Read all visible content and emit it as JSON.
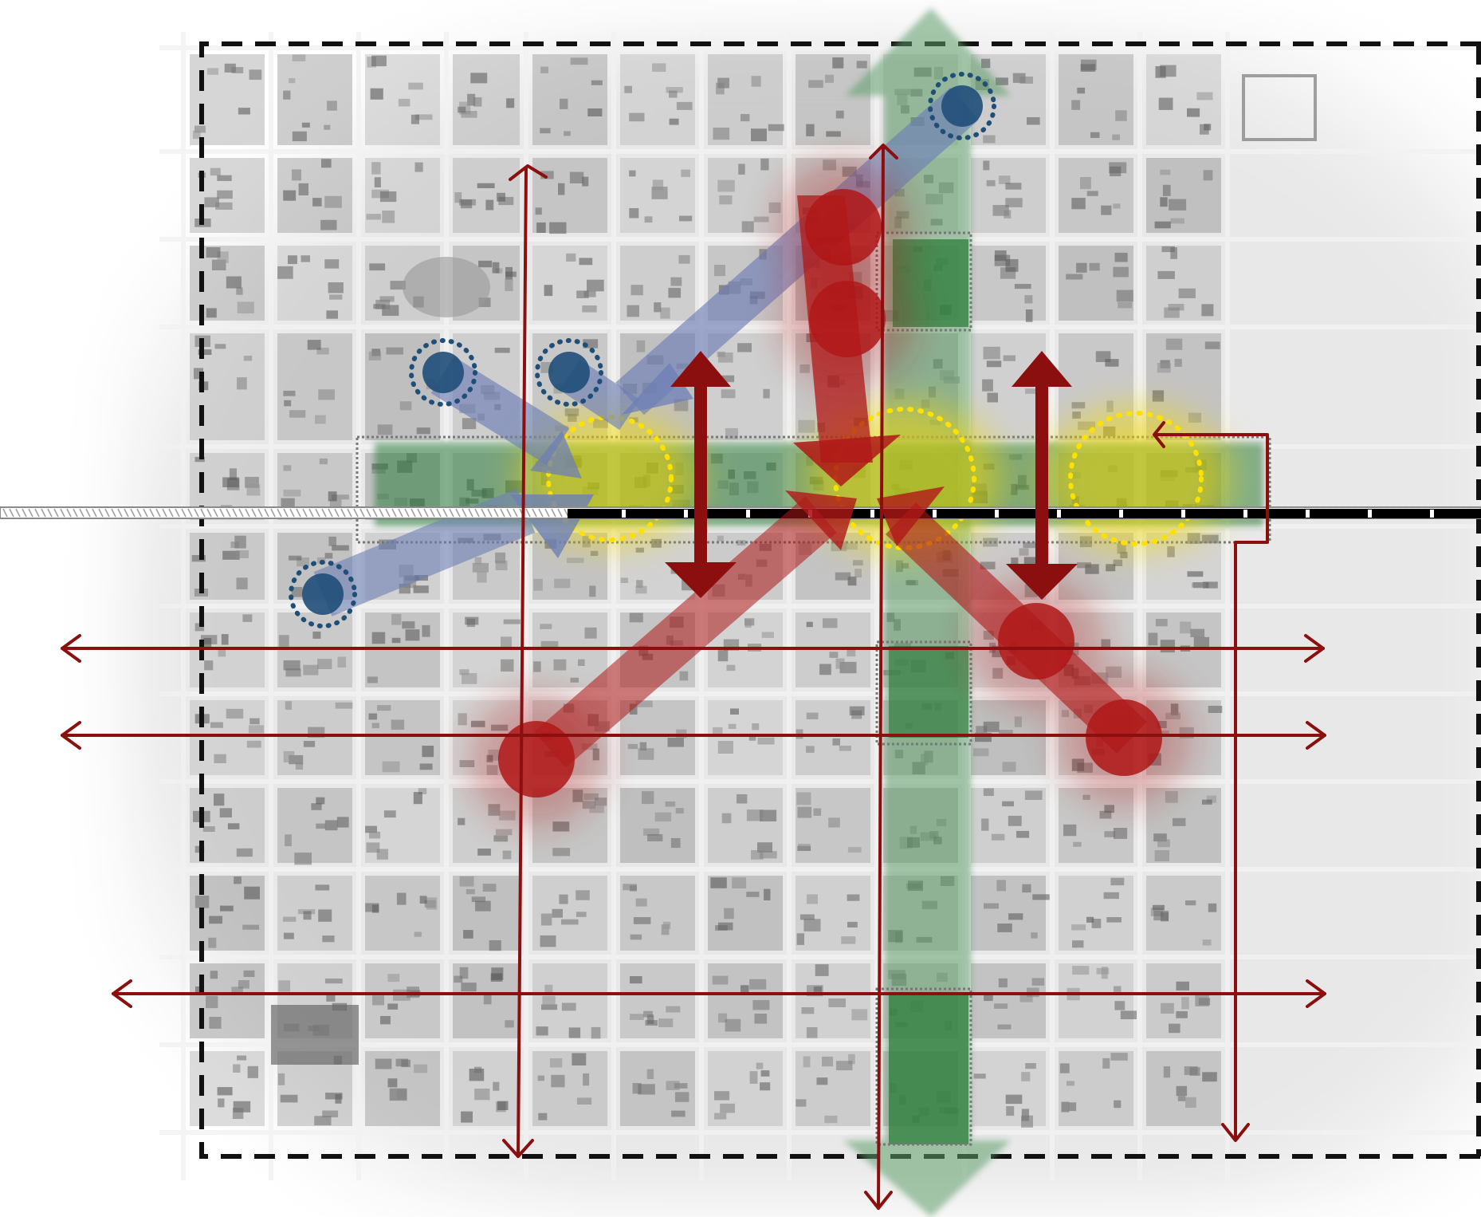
{
  "map": {
    "style": "annotated aerial site-analysis diagram",
    "base_layer": "grayscale-aerial-town-grid",
    "study_boundary": {
      "style": "dashed",
      "color": "#111111"
    },
    "colors": {
      "green_corridor": "#2e7d3c",
      "green_corridor_light": "#5f9e6a",
      "red_axis": "#8b0f0f",
      "red_node": "#b01818",
      "blue_node": "#1f4e79",
      "blue_flow": "#6d7fb5",
      "yellow_ring": "#ffe100",
      "yellow_glow": "#f2d900",
      "rail": "#000000",
      "base_background": "#e8e8e8"
    },
    "legend": []
  }
}
